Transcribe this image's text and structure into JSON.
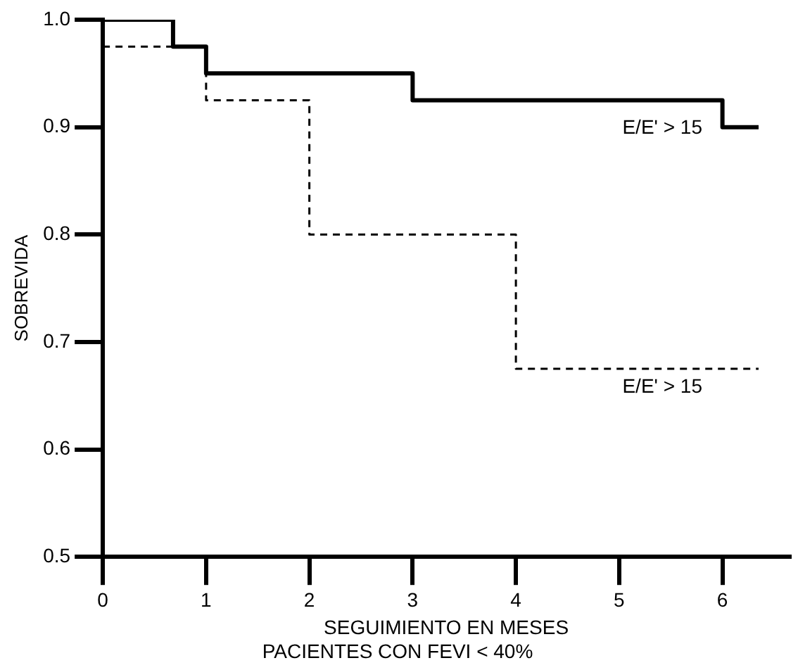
{
  "chart_data": {
    "type": "step",
    "xlabel": "SEGUIMIENTO EN MESES",
    "ylabel": "SOBREVIDA",
    "title": "PACIENTES CON FEVI < 40%",
    "series": [
      {
        "name": "E/E' > 15",
        "color": "#000000",
        "line_style": "solid",
        "x": [
          0,
          0.68,
          1,
          3,
          6,
          6.35
        ],
        "values": [
          1,
          0.975,
          0.95,
          0.925,
          0.9,
          0.9
        ]
      },
      {
        "name": "E/E' > 15",
        "color": "#000000",
        "line_style": "dashed",
        "x": [
          0,
          1,
          2,
          4,
          6.35
        ],
        "values": [
          0.975,
          0.925,
          0.8,
          0.675,
          0.675
        ]
      }
    ],
    "xlim": [
      0,
      6.65
    ],
    "xticks": [
      0,
      1,
      2,
      3,
      4,
      5,
      6
    ],
    "ylim": [
      0.5,
      1.0
    ],
    "yticks": [
      {
        "value": 0.5,
        "label": "0.5"
      },
      {
        "value": 0.6,
        "label": "0.6"
      },
      {
        "value": 0.7,
        "label": "0.7"
      },
      {
        "value": 0.8,
        "label": "0.8"
      },
      {
        "value": 0.9,
        "label": "0.9"
      },
      {
        "value": 1.0,
        "label": "1.0"
      }
    ],
    "grid": false,
    "legend": false,
    "marker": "none"
  }
}
